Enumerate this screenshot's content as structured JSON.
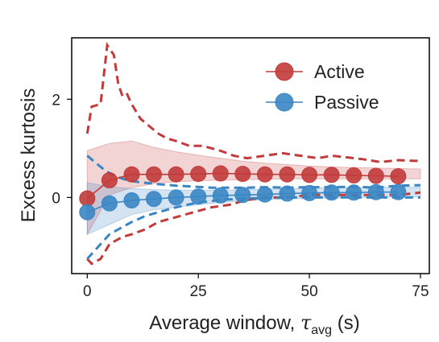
{
  "chart_data": {
    "type": "line",
    "xlabel_main": "Average window, ",
    "xlabel_symbol": "τ",
    "xlabel_subscript": "avg",
    "xlabel_unit": " (s)",
    "ylabel": "Excess kurtosis",
    "xlim": [
      -3.5,
      77
    ],
    "ylim": [
      -1.55,
      3.25
    ],
    "xticks": [
      0,
      25,
      50,
      75
    ],
    "yticks": [
      0,
      2
    ],
    "grid": false,
    "legend_position": "top-right",
    "series": [
      {
        "name": "Active",
        "color": "#c23b3b",
        "x": [
          0,
          5,
          10,
          15,
          20,
          25,
          30,
          35,
          40,
          45,
          50,
          55,
          60,
          65,
          70
        ],
        "y": [
          -0.02,
          0.35,
          0.47,
          0.47,
          0.47,
          0.48,
          0.49,
          0.48,
          0.47,
          0.47,
          0.46,
          0.46,
          0.45,
          0.44,
          0.43
        ],
        "band_x": [
          0,
          5,
          10,
          15,
          20,
          25,
          30,
          35,
          40,
          45,
          50,
          55,
          60,
          65,
          70,
          75
        ],
        "band_low": [
          -0.75,
          0.05,
          0.2,
          0.28,
          0.32,
          0.34,
          0.35,
          0.36,
          0.37,
          0.38,
          0.38,
          0.38,
          0.38,
          0.38,
          0.38,
          0.38
        ],
        "band_high": [
          0.95,
          1.1,
          1.15,
          1.02,
          0.93,
          0.86,
          0.8,
          0.74,
          0.7,
          0.67,
          0.64,
          0.62,
          0.61,
          0.6,
          0.59,
          0.58
        ],
        "upper_x": [
          0,
          1,
          3,
          4.5,
          6,
          7,
          8,
          9,
          10,
          12,
          14,
          16,
          18,
          20,
          23,
          26,
          30,
          33,
          36,
          40,
          44,
          48,
          52,
          55,
          58,
          62,
          66,
          70,
          75
        ],
        "upper_y": [
          1.3,
          1.85,
          1.9,
          3.1,
          2.9,
          2.3,
          2.05,
          2.1,
          1.9,
          1.6,
          1.45,
          1.3,
          1.2,
          1.15,
          1.05,
          1.05,
          0.95,
          0.85,
          0.8,
          0.85,
          0.9,
          0.85,
          0.8,
          0.85,
          0.82,
          0.78,
          0.72,
          0.76,
          0.74
        ],
        "lower_x": [
          0,
          1,
          3,
          5,
          8,
          10,
          13,
          16,
          20,
          24,
          28,
          32,
          36,
          40,
          45,
          50,
          55,
          60,
          65,
          70,
          75
        ],
        "lower_y": [
          -1.25,
          -1.35,
          -1.25,
          -0.95,
          -0.8,
          -0.75,
          -0.65,
          -0.5,
          -0.4,
          -0.3,
          -0.2,
          -0.15,
          -0.05,
          0.0,
          0.0,
          0.05,
          0.05,
          0.05,
          0.05,
          0.05,
          0.1
        ]
      },
      {
        "name": "Passive",
        "color": "#3a86c4",
        "x": [
          0,
          5,
          10,
          15,
          20,
          25,
          30,
          35,
          40,
          45,
          50,
          55,
          60,
          65,
          70
        ],
        "y": [
          -0.3,
          -0.12,
          -0.06,
          -0.03,
          0.0,
          0.02,
          0.04,
          0.05,
          0.06,
          0.08,
          0.09,
          0.1,
          0.1,
          0.11,
          0.11
        ],
        "band_x": [
          0,
          5,
          10,
          15,
          20,
          25,
          30,
          35,
          40,
          45,
          50,
          55,
          60,
          65,
          70,
          75
        ],
        "band_low": [
          -0.75,
          -0.55,
          -0.35,
          -0.25,
          -0.2,
          -0.15,
          -0.1,
          -0.07,
          -0.05,
          -0.03,
          -0.02,
          -0.01,
          0.0,
          0.0,
          0.01,
          0.01
        ],
        "band_high": [
          0.3,
          0.22,
          0.18,
          0.16,
          0.15,
          0.15,
          0.15,
          0.16,
          0.17,
          0.18,
          0.19,
          0.2,
          0.2,
          0.21,
          0.21,
          0.21
        ],
        "upper_x": [
          0,
          2,
          4,
          6,
          8,
          10,
          13,
          16,
          20,
          24,
          28,
          32,
          36,
          40,
          45,
          50,
          55,
          60,
          65,
          70,
          75
        ],
        "upper_y": [
          0.85,
          0.7,
          0.55,
          0.45,
          0.38,
          0.33,
          0.3,
          0.27,
          0.24,
          0.22,
          0.2,
          0.2,
          0.2,
          0.21,
          0.2,
          0.21,
          0.21,
          0.22,
          0.2,
          0.24,
          0.25
        ],
        "lower_x": [
          0,
          1,
          3,
          5,
          8,
          10,
          13,
          16,
          20,
          24,
          28,
          32,
          36,
          40,
          45,
          50,
          55,
          60,
          65,
          70,
          75
        ],
        "lower_y": [
          -1.25,
          -1.15,
          -0.95,
          -0.75,
          -0.6,
          -0.5,
          -0.38,
          -0.3,
          -0.2,
          -0.12,
          -0.07,
          -0.04,
          -0.02,
          -0.01,
          0.0,
          0.0,
          0.0,
          0.0,
          0.0,
          0.0,
          0.0
        ]
      }
    ]
  }
}
